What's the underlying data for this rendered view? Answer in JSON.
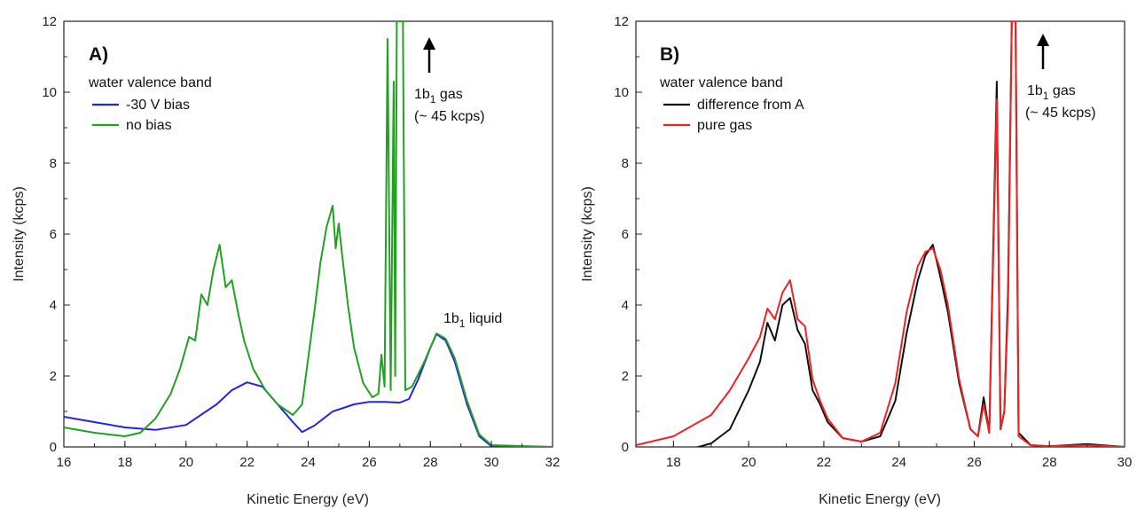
{
  "chart_data": [
    {
      "type": "line",
      "panel_label": "A)",
      "xlabel": "Kinetic Energy (eV)",
      "ylabel": "Intensity (kcps)",
      "xlim": [
        16,
        32
      ],
      "ylim": [
        0,
        12
      ],
      "xticks": [
        "16",
        "18",
        "20",
        "22",
        "24",
        "26",
        "28",
        "30",
        "32"
      ],
      "yticks": [
        "0",
        "2",
        "4",
        "6",
        "8",
        "10",
        "12"
      ],
      "legend_title": "water valence band",
      "legend_position": "top-left",
      "annotations": {
        "gas_line1": "1b",
        "gas_sub": "1",
        "gas_line1_rest": " gas",
        "gas_line2": "(~ 45 kcps)",
        "liquid_main": "1b",
        "liquid_sub": "1",
        "liquid_rest": " liquid"
      },
      "series": [
        {
          "name": "-30 V bias",
          "color": "#2222ee",
          "points": [
            [
              16,
              0.85
            ],
            [
              17,
              0.7
            ],
            [
              18,
              0.55
            ],
            [
              19,
              0.48
            ],
            [
              20,
              0.62
            ],
            [
              21,
              1.2
            ],
            [
              21.5,
              1.6
            ],
            [
              22,
              1.82
            ],
            [
              22.5,
              1.7
            ],
            [
              23,
              1.2
            ],
            [
              23.5,
              0.7
            ],
            [
              23.8,
              0.42
            ],
            [
              24.2,
              0.6
            ],
            [
              24.8,
              1.0
            ],
            [
              25.5,
              1.2
            ],
            [
              26,
              1.27
            ],
            [
              26.5,
              1.27
            ],
            [
              27,
              1.25
            ],
            [
              27.3,
              1.35
            ],
            [
              27.6,
              1.9
            ],
            [
              28,
              2.8
            ],
            [
              28.2,
              3.18
            ],
            [
              28.5,
              3.0
            ],
            [
              28.8,
              2.4
            ],
            [
              29.2,
              1.2
            ],
            [
              29.6,
              0.3
            ],
            [
              30,
              0.02
            ],
            [
              32,
              0
            ]
          ]
        },
        {
          "name": "no bias",
          "color": "#22a022",
          "points": [
            [
              16,
              0.55
            ],
            [
              17,
              0.4
            ],
            [
              18,
              0.3
            ],
            [
              18.5,
              0.4
            ],
            [
              19,
              0.8
            ],
            [
              19.5,
              1.5
            ],
            [
              19.8,
              2.2
            ],
            [
              20.1,
              3.1
            ],
            [
              20.3,
              3.0
            ],
            [
              20.5,
              4.3
            ],
            [
              20.7,
              4.0
            ],
            [
              20.9,
              5.0
            ],
            [
              21.1,
              5.7
            ],
            [
              21.3,
              4.5
            ],
            [
              21.5,
              4.7
            ],
            [
              21.7,
              3.8
            ],
            [
              21.9,
              3.0
            ],
            [
              22.2,
              2.2
            ],
            [
              22.6,
              1.6
            ],
            [
              23,
              1.2
            ],
            [
              23.5,
              0.9
            ],
            [
              23.8,
              1.2
            ],
            [
              24,
              2.5
            ],
            [
              24.2,
              3.8
            ],
            [
              24.4,
              5.2
            ],
            [
              24.6,
              6.2
            ],
            [
              24.8,
              6.8
            ],
            [
              24.9,
              5.6
            ],
            [
              25.0,
              6.3
            ],
            [
              25.1,
              5.5
            ],
            [
              25.3,
              4.0
            ],
            [
              25.5,
              2.8
            ],
            [
              25.8,
              1.8
            ],
            [
              26.1,
              1.4
            ],
            [
              26.3,
              1.5
            ],
            [
              26.4,
              2.6
            ],
            [
              26.5,
              1.7
            ],
            [
              26.6,
              11.5
            ],
            [
              26.7,
              1.6
            ],
            [
              26.8,
              10.3
            ],
            [
              26.85,
              2.0
            ],
            [
              26.9,
              12
            ],
            [
              27.0,
              12
            ],
            [
              27.1,
              12
            ],
            [
              27.18,
              1.6
            ],
            [
              27.4,
              1.7
            ],
            [
              27.8,
              2.4
            ],
            [
              28.2,
              3.2
            ],
            [
              28.5,
              3.05
            ],
            [
              28.8,
              2.5
            ],
            [
              29.2,
              1.3
            ],
            [
              29.6,
              0.35
            ],
            [
              30,
              0.05
            ],
            [
              32,
              0
            ]
          ]
        }
      ]
    },
    {
      "type": "line",
      "panel_label": "B)",
      "xlabel": "Kinetic Energy (eV)",
      "ylabel": "Intensity (kcps)",
      "xlim": [
        17,
        30
      ],
      "ylim": [
        0,
        12
      ],
      "xticks": [
        "18",
        "20",
        "22",
        "24",
        "26",
        "28",
        "30"
      ],
      "yticks": [
        "0",
        "2",
        "4",
        "6",
        "8",
        "10",
        "12"
      ],
      "legend_title": "water valence band",
      "legend_position": "top-left",
      "annotations": {
        "gas_line1": "1b",
        "gas_sub": "1",
        "gas_line1_rest": " gas",
        "gas_line2": "(~ 45 kcps)"
      },
      "series": [
        {
          "name": "difference from A",
          "color": "#111111",
          "points": [
            [
              17,
              -0.3
            ],
            [
              18,
              -0.2
            ],
            [
              19,
              0.1
            ],
            [
              19.5,
              0.5
            ],
            [
              20,
              1.6
            ],
            [
              20.3,
              2.4
            ],
            [
              20.5,
              3.5
            ],
            [
              20.7,
              3.0
            ],
            [
              20.9,
              4.0
            ],
            [
              21.1,
              4.2
            ],
            [
              21.3,
              3.3
            ],
            [
              21.5,
              2.9
            ],
            [
              21.7,
              1.6
            ],
            [
              21.9,
              1.2
            ],
            [
              22.1,
              0.7
            ],
            [
              22.5,
              0.25
            ],
            [
              23,
              0.15
            ],
            [
              23.5,
              0.3
            ],
            [
              23.9,
              1.3
            ],
            [
              24.2,
              3.2
            ],
            [
              24.5,
              4.7
            ],
            [
              24.7,
              5.4
            ],
            [
              24.9,
              5.7
            ],
            [
              25.1,
              4.8
            ],
            [
              25.3,
              3.8
            ],
            [
              25.6,
              1.8
            ],
            [
              25.9,
              0.5
            ],
            [
              26.1,
              0.3
            ],
            [
              26.25,
              1.4
            ],
            [
              26.4,
              0.4
            ],
            [
              26.6,
              10.3
            ],
            [
              26.7,
              0.5
            ],
            [
              26.8,
              1.0
            ],
            [
              26.9,
              4.4
            ],
            [
              27.0,
              12
            ],
            [
              27.1,
              12
            ],
            [
              27.18,
              0.4
            ],
            [
              27.5,
              0.05
            ],
            [
              28,
              0.02
            ],
            [
              29,
              0.08
            ],
            [
              30,
              0
            ]
          ]
        },
        {
          "name": "pure gas",
          "color": "#ee2222",
          "points": [
            [
              17,
              0.05
            ],
            [
              18,
              0.3
            ],
            [
              19,
              0.9
            ],
            [
              19.5,
              1.6
            ],
            [
              20,
              2.5
            ],
            [
              20.3,
              3.1
            ],
            [
              20.5,
              3.9
            ],
            [
              20.7,
              3.6
            ],
            [
              20.9,
              4.35
            ],
            [
              21.1,
              4.7
            ],
            [
              21.3,
              3.6
            ],
            [
              21.5,
              3.4
            ],
            [
              21.7,
              1.9
            ],
            [
              21.9,
              1.3
            ],
            [
              22.1,
              0.8
            ],
            [
              22.5,
              0.25
            ],
            [
              23,
              0.15
            ],
            [
              23.5,
              0.4
            ],
            [
              23.9,
              1.8
            ],
            [
              24.2,
              3.8
            ],
            [
              24.5,
              5.1
            ],
            [
              24.7,
              5.5
            ],
            [
              24.9,
              5.6
            ],
            [
              25.1,
              5.0
            ],
            [
              25.3,
              4.0
            ],
            [
              25.6,
              1.9
            ],
            [
              25.9,
              0.5
            ],
            [
              26.1,
              0.3
            ],
            [
              26.25,
              1.2
            ],
            [
              26.4,
              0.4
            ],
            [
              26.6,
              9.8
            ],
            [
              26.7,
              0.5
            ],
            [
              26.8,
              1.0
            ],
            [
              26.9,
              4.0
            ],
            [
              27.0,
              12
            ],
            [
              27.1,
              12
            ],
            [
              27.18,
              0.3
            ],
            [
              27.5,
              0.05
            ],
            [
              28,
              0.02
            ],
            [
              29,
              0.05
            ],
            [
              30,
              0
            ]
          ]
        }
      ]
    }
  ]
}
